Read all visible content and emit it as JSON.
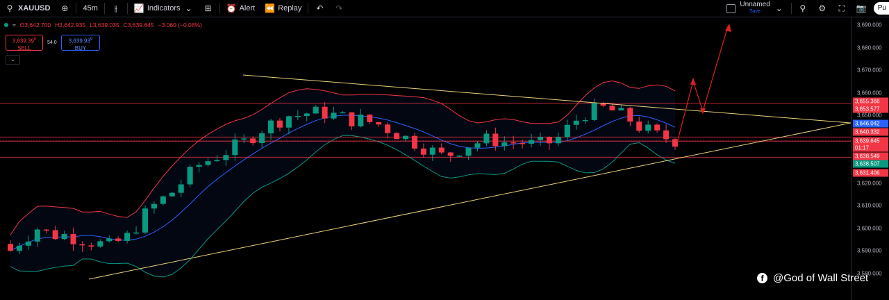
{
  "toolbar": {
    "symbol": "XAUUSD",
    "interval": "45m",
    "indicators_label": "Indicators",
    "alert_label": "Alert",
    "replay_label": "Replay",
    "layout_name": "Unnamed",
    "layout_status": "Save",
    "publish_label": "Pu"
  },
  "legend": {
    "open": "O3,642.700",
    "high": "H3,642.935",
    "low": "L3,639.035",
    "close": "C3,639.645",
    "change": "−3.060 (−0.08%)"
  },
  "trade": {
    "sell_price": "3,639.39",
    "sell_sup": "0",
    "sell_label": "SELL",
    "spread": "54.0",
    "buy_price": "3,639.93",
    "buy_sup": "9",
    "buy_label": "BUY"
  },
  "axis_ticks": [
    "3,690.000",
    "3,680.000",
    "3,670.000",
    "3,660.000",
    "3,650.000",
    "3,620.000",
    "3,610.000",
    "3,600.000",
    "3,590.000",
    "3,580.000"
  ],
  "price_labels": [
    {
      "text": "3,655.366",
      "color": "#f23645"
    },
    {
      "text": "3,653.577",
      "color": "#f23645"
    },
    {
      "text": "3,646.042",
      "color": "#2962ff"
    },
    {
      "text": "3,640.332",
      "color": "#f23645"
    },
    {
      "text": "3,639.645",
      "color": "#f23645"
    },
    {
      "text": "01:17",
      "color": "#f23645"
    },
    {
      "text": "3,638.549",
      "color": "#f23645"
    },
    {
      "text": "3,638.507",
      "color": "#089981"
    },
    {
      "text": "3,631.406",
      "color": "#f23645"
    }
  ],
  "watermark": "@God of Wall Street",
  "colors": {
    "up": "#089981",
    "down": "#f23645",
    "basis": "#2962ff",
    "trend": "#e8d27a",
    "arrow": "#e02020"
  },
  "chart_data": {
    "type": "candlestick",
    "symbol": "XAUUSD",
    "interval": "45m",
    "price_range": [
      3580,
      3693
    ],
    "horizontal_levels": [
      3655.366,
      3640.332,
      3638.549,
      3631.406
    ],
    "bollinger_bands": true,
    "close_series": [
      3590,
      3594,
      3597,
      3600,
      3598,
      3597,
      3597,
      3596,
      3595,
      3594,
      3593,
      3592,
      3594,
      3596,
      3601,
      3606,
      3610,
      3613,
      3616,
      3620,
      3624,
      3628,
      3630,
      3632,
      3634,
      3636,
      3638,
      3641,
      3644,
      3646,
      3648,
      3650,
      3650,
      3651,
      3651,
      3651,
      3650,
      3649,
      3648,
      3648,
      3647,
      3646,
      3644,
      3642,
      3640,
      3638,
      3636,
      3634,
      3632,
      3633,
      3635,
      3637,
      3638,
      3639,
      3639,
      3638,
      3638,
      3638,
      3637,
      3637,
      3638,
      3640,
      3644,
      3648,
      3651,
      3652,
      3653,
      3652,
      3650,
      3648,
      3645,
      3643,
      3641,
      3640,
      3639
    ]
  }
}
